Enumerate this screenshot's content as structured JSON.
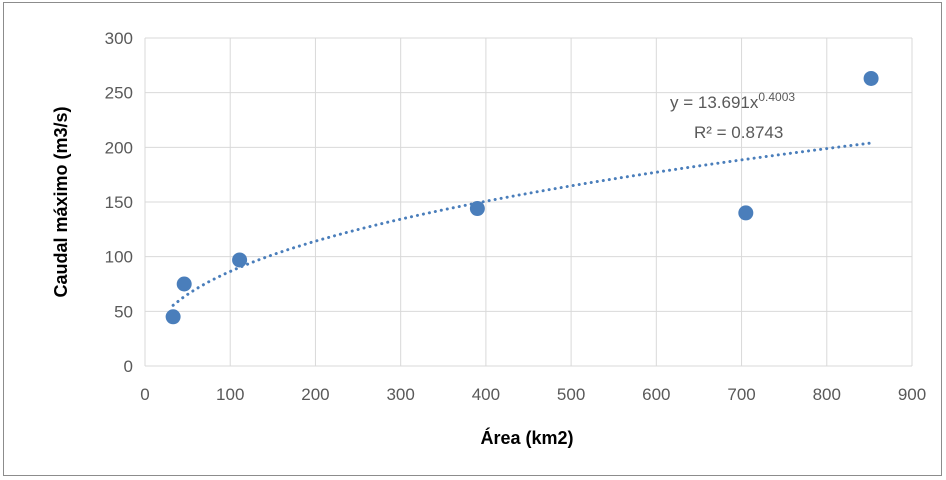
{
  "chart_data": {
    "type": "scatter",
    "xlabel": "Área (km2)",
    "ylabel": "Caudal máximo (m3/s)",
    "xlim": [
      0,
      900
    ],
    "ylim": [
      0,
      300
    ],
    "xticks": [
      0,
      100,
      200,
      300,
      400,
      500,
      600,
      700,
      800,
      900
    ],
    "yticks": [
      0,
      50,
      100,
      150,
      200,
      250,
      300
    ],
    "grid": true,
    "legend": "none",
    "points": [
      {
        "x": 33,
        "y": 45
      },
      {
        "x": 46,
        "y": 75
      },
      {
        "x": 111,
        "y": 97
      },
      {
        "x": 390,
        "y": 144
      },
      {
        "x": 705,
        "y": 140
      },
      {
        "x": 852,
        "y": 263
      }
    ],
    "trendline": {
      "type": "power",
      "a": 13.691,
      "b": 0.4003,
      "x_range": [
        33,
        852
      ],
      "equation_prefix": "y = 13.691x",
      "equation_exponent": "0.4003",
      "r_squared_label": "R² = 0.8743"
    },
    "colors": {
      "marker": "#4a7ebb",
      "trendline": "#4a7ebb",
      "grid": "#d9d9d9"
    }
  }
}
